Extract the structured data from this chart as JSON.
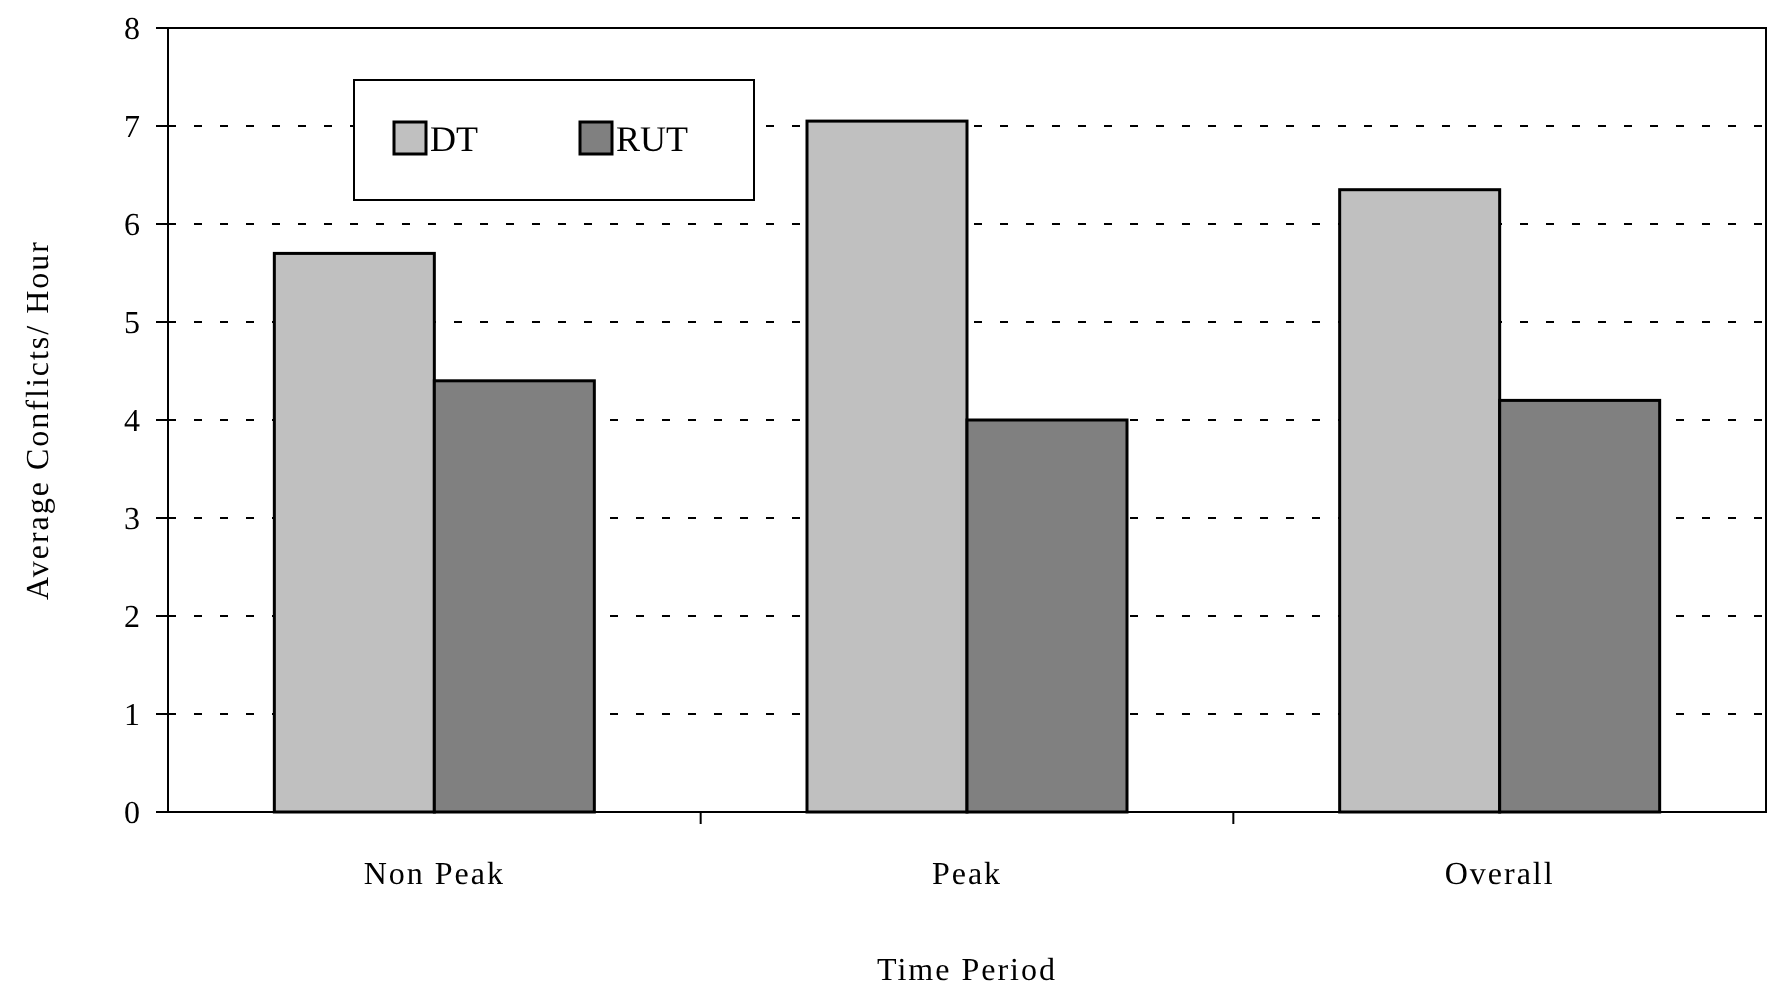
{
  "chart_data": {
    "type": "bar",
    "xlabel": "Time Period",
    "ylabel": "Average Conflicts/ Hour",
    "categories": [
      "Non Peak",
      "Peak",
      "Overall"
    ],
    "series": [
      {
        "name": "DT",
        "color": "#c0c0c0",
        "values": [
          5.7,
          7.05,
          6.35
        ]
      },
      {
        "name": "RUT",
        "color": "#808080",
        "values": [
          4.4,
          4.0,
          4.2
        ]
      }
    ],
    "ylim": [
      0,
      8
    ],
    "yticks": [
      0,
      1,
      2,
      3,
      4,
      5,
      6,
      7,
      8
    ],
    "grid": "y",
    "legend": "top left"
  }
}
